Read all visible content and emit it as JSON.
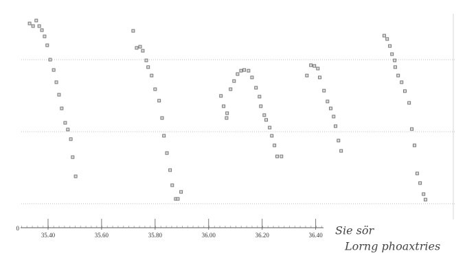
{
  "chart_data": {
    "type": "scatter",
    "x": [
      35.331,
      35.344,
      35.356,
      35.367,
      35.377,
      35.387,
      35.397,
      35.408,
      35.421,
      35.431,
      35.441,
      35.451,
      35.464,
      35.474,
      35.485,
      35.492,
      35.503,
      35.718,
      35.731,
      35.744,
      35.754,
      35.767,
      35.774,
      35.787,
      35.8,
      35.815,
      35.826,
      35.833,
      35.844,
      35.856,
      35.864,
      35.877,
      35.885,
      35.897,
      36.046,
      36.056,
      36.067,
      36.069,
      36.082,
      36.095,
      36.108,
      36.121,
      36.133,
      36.149,
      36.162,
      36.177,
      36.19,
      36.195,
      36.208,
      36.215,
      36.228,
      36.236,
      36.246,
      36.256,
      36.272,
      36.367,
      36.382,
      36.395,
      36.408,
      36.415,
      36.431,
      36.444,
      36.456,
      36.467,
      36.474,
      36.485,
      36.495,
      36.656,
      36.667,
      36.677,
      36.685,
      36.695,
      36.697,
      36.708,
      36.721,
      36.733,
      36.749,
      36.759,
      36.769,
      36.779,
      36.79,
      36.803,
      36.81
    ],
    "values": [
      8.51,
      8.4,
      8.63,
      8.4,
      8.23,
      7.97,
      7.6,
      7.0,
      6.57,
      6.06,
      5.54,
      4.97,
      4.37,
      4.09,
      3.69,
      2.94,
      2.14,
      8.2,
      7.49,
      7.54,
      7.37,
      6.97,
      6.69,
      6.34,
      5.77,
      5.29,
      4.57,
      3.83,
      3.11,
      2.4,
      1.77,
      1.2,
      1.2,
      1.49,
      5.49,
      5.06,
      4.57,
      4.77,
      5.77,
      6.11,
      6.4,
      6.54,
      6.57,
      6.54,
      6.26,
      5.83,
      5.46,
      5.06,
      4.69,
      4.49,
      4.17,
      3.83,
      3.43,
      2.97,
      2.97,
      6.34,
      6.77,
      6.74,
      6.63,
      6.26,
      5.71,
      5.26,
      4.97,
      4.63,
      4.23,
      3.63,
      3.2,
      8.0,
      7.86,
      7.57,
      7.23,
      6.97,
      6.69,
      6.34,
      6.06,
      5.69,
      5.2,
      4.11,
      3.43,
      2.26,
      1.86,
      1.4,
      1.17
    ],
    "color": "#6a6a6a",
    "xlim": [
      35.3,
      36.95
    ],
    "xticks": [
      {
        "value": 35.4,
        "label": "35.40"
      },
      {
        "value": 35.6,
        "label": "35.60"
      },
      {
        "value": 35.8,
        "label": "35.80"
      },
      {
        "value": 36.0,
        "label": "36.00"
      },
      {
        "value": 36.2,
        "label": "36.20"
      },
      {
        "value": 36.4,
        "label": "36.40"
      }
    ],
    "ylim": [
      0,
      9
    ],
    "yticks": [
      0
    ],
    "hlines": [
      1,
      4,
      7
    ],
    "annotations": [
      "Sie sör",
      "Lorng phoaxtries"
    ]
  }
}
